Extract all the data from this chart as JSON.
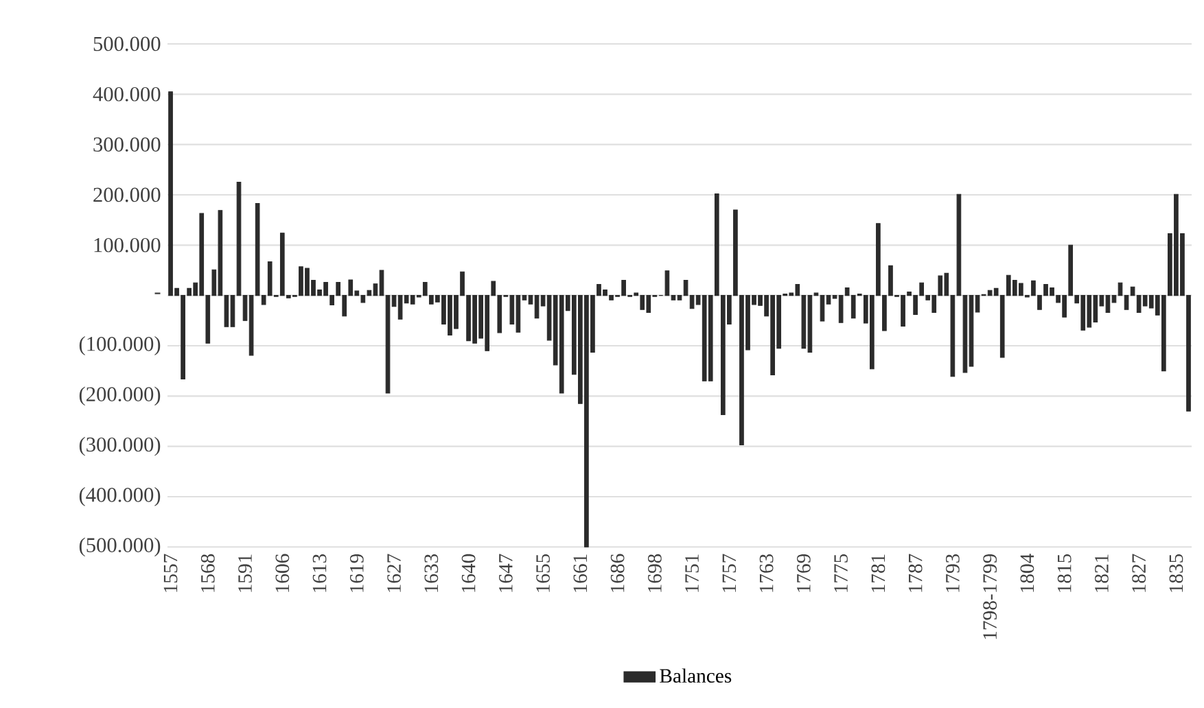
{
  "chart_data": {
    "type": "bar",
    "categories": [
      "1557",
      null,
      null,
      null,
      null,
      null,
      "1568",
      null,
      null,
      null,
      null,
      null,
      "1591",
      null,
      null,
      null,
      null,
      null,
      "1606",
      null,
      null,
      null,
      null,
      null,
      "1613",
      null,
      null,
      null,
      null,
      null,
      "1619",
      null,
      null,
      null,
      null,
      null,
      "1627",
      null,
      null,
      null,
      null,
      null,
      "1633",
      null,
      null,
      null,
      null,
      null,
      "1640",
      null,
      null,
      null,
      null,
      null,
      "1647",
      null,
      null,
      null,
      null,
      null,
      "1655",
      null,
      null,
      null,
      null,
      null,
      "1661",
      null,
      null,
      null,
      null,
      null,
      "1686",
      null,
      null,
      null,
      null,
      null,
      "1698",
      null,
      null,
      null,
      null,
      null,
      "1751",
      null,
      null,
      null,
      null,
      null,
      "1757",
      null,
      null,
      null,
      null,
      null,
      "1763",
      null,
      null,
      null,
      null,
      null,
      "1769",
      null,
      null,
      null,
      null,
      null,
      "1775",
      null,
      null,
      null,
      null,
      null,
      "1781",
      null,
      null,
      null,
      null,
      null,
      "1787",
      null,
      null,
      null,
      null,
      null,
      "1793",
      null,
      null,
      null,
      null,
      null,
      "1798-1799",
      null,
      null,
      null,
      null,
      null,
      "1804",
      null,
      null,
      null,
      null,
      null,
      "1815",
      null,
      null,
      null,
      null,
      null,
      "1821",
      null,
      null,
      null,
      null,
      null,
      "1827",
      null,
      null,
      null,
      null,
      null,
      "1835",
      null,
      null
    ],
    "series": [
      {
        "name": "Balances",
        "color": "#2b2b2b",
        "values": [
          405000,
          14000,
          -166000,
          14000,
          25000,
          163000,
          -95000,
          51000,
          169000,
          -62000,
          -62000,
          225000,
          -50000,
          -119000,
          183000,
          -18000,
          67000,
          -2000,
          124000,
          -5000,
          -2000,
          57000,
          54000,
          30000,
          11000,
          26000,
          -19000,
          26000,
          -41000,
          31000,
          9000,
          -14000,
          10000,
          23000,
          50000,
          -194000,
          -22000,
          -47000,
          -15000,
          -17000,
          -3000,
          26000,
          -17000,
          -13000,
          -57000,
          -79000,
          -66000,
          47000,
          -90000,
          -95000,
          -85000,
          -110000,
          28000,
          -74000,
          -2000,
          -57000,
          -73000,
          -9000,
          -17000,
          -45000,
          -21000,
          -89000,
          -138000,
          -194000,
          -30000,
          -157000,
          -215000,
          -500000,
          -113000,
          22000,
          11000,
          -9000,
          -2000,
          30000,
          -2000,
          5000,
          -28000,
          -34000,
          -2000,
          0,
          49000,
          -9000,
          -9000,
          30000,
          -26000,
          -18000,
          -170000,
          -170000,
          202000,
          -237000,
          -57000,
          170000,
          -297000,
          -108000,
          -18000,
          -20000,
          -41000,
          -158000,
          -105000,
          3000,
          5000,
          22000,
          -105000,
          -113000,
          5000,
          -51000,
          -17000,
          -6000,
          -54000,
          15000,
          -45000,
          3000,
          -55000,
          -146000,
          143000,
          -70000,
          59000,
          -2000,
          -61000,
          7000,
          -38000,
          25000,
          -9000,
          -34000,
          39000,
          44000,
          -161000,
          201000,
          -153000,
          -141000,
          -33000,
          2000,
          10000,
          14000,
          -123000,
          40000,
          30000,
          24000,
          -3000,
          29000,
          -28000,
          22000,
          15000,
          -14000,
          -43000,
          100000,
          -15000,
          -69000,
          -63000,
          -53000,
          -21000,
          -34000,
          -14000,
          25000,
          -28000,
          17000,
          -34000,
          -21000,
          -25000,
          -39000,
          -150000,
          123000,
          201000,
          123000,
          -230000
        ]
      }
    ],
    "ylim": [
      -500000,
      500000
    ],
    "yticks": [
      {
        "value": -500000,
        "label": "(500.000)"
      },
      {
        "value": -400000,
        "label": "(400.000)"
      },
      {
        "value": -300000,
        "label": "(300.000)"
      },
      {
        "value": -200000,
        "label": "(200.000)"
      },
      {
        "value": -100000,
        "label": "(100.000)"
      },
      {
        "value": 0,
        "label": "-"
      },
      {
        "value": 100000,
        "label": "100.000"
      },
      {
        "value": 200000,
        "label": "200.000"
      },
      {
        "value": 300000,
        "label": "300.000"
      },
      {
        "value": 400000,
        "label": "400.000"
      },
      {
        "value": 500000,
        "label": "500.000"
      }
    ],
    "grid": "y",
    "legend": "bottom"
  }
}
